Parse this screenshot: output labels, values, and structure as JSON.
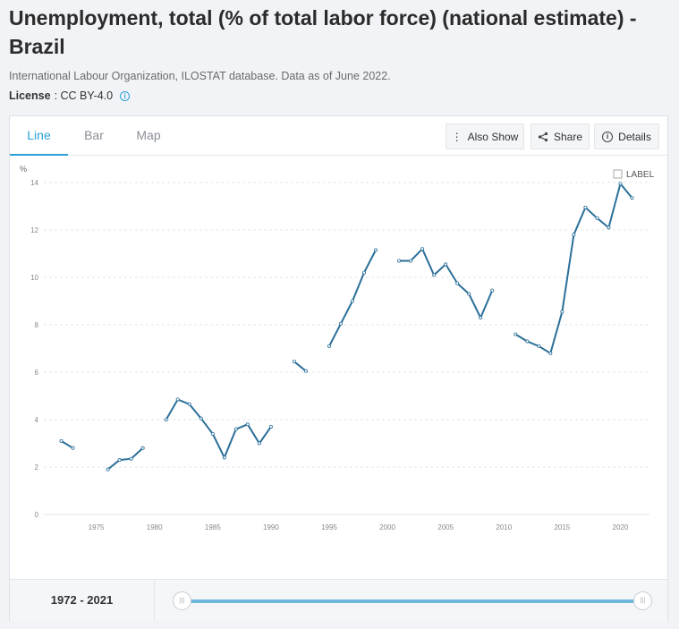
{
  "title": "Unemployment, total (% of total labor force) (national estimate) - Brazil",
  "source": "International Labour Organization, ILOSTAT database. Data as of June 2022.",
  "license": {
    "label": "License",
    "value": " : CC BY-4.0",
    "info_icon": "info-icon"
  },
  "tabs": [
    {
      "label": "Line"
    },
    {
      "label": "Bar"
    },
    {
      "label": "Map"
    }
  ],
  "buttons": {
    "also_show": {
      "label": "Also Show",
      "icon": "vertical-dots-icon"
    },
    "share": {
      "label": "Share",
      "icon": "share-icon"
    },
    "details": {
      "label": "Details",
      "icon": "info-icon"
    }
  },
  "label_toggle": "LABEL",
  "range_label": "1972 - 2021",
  "chart_data": {
    "type": "line",
    "ylabel": "%",
    "ylim": [
      0,
      14
    ],
    "y_ticks": [
      0,
      2,
      4,
      6,
      8,
      10,
      12,
      14
    ],
    "xlim": [
      1970.5,
      2022.5
    ],
    "x_ticks": [
      1975,
      1980,
      1985,
      1990,
      1995,
      2000,
      2005,
      2010,
      2015,
      2020
    ],
    "grid": "horizontal-dashed",
    "color": "#2b6f99",
    "series": [
      {
        "points": [
          [
            1972,
            3.1
          ],
          [
            1973,
            2.8
          ],
          [
            1974,
            null
          ],
          [
            1975,
            null
          ],
          [
            1976,
            1.9
          ],
          [
            1977,
            2.3
          ],
          [
            1978,
            2.35
          ],
          [
            1979,
            2.8
          ],
          [
            1980,
            null
          ],
          [
            1981,
            4.0
          ],
          [
            1982,
            4.85
          ],
          [
            1983,
            4.65
          ],
          [
            1984,
            4.05
          ],
          [
            1985,
            3.4
          ],
          [
            1986,
            2.4
          ],
          [
            1987,
            3.6
          ],
          [
            1988,
            3.8
          ],
          [
            1989,
            3.0
          ],
          [
            1990,
            3.7
          ],
          [
            1991,
            null
          ],
          [
            1992,
            6.45
          ],
          [
            1993,
            6.05
          ],
          [
            1994,
            null
          ],
          [
            1995,
            7.1
          ],
          [
            1996,
            8.05
          ],
          [
            1997,
            9.0
          ],
          [
            1998,
            10.2
          ],
          [
            1999,
            11.15
          ],
          [
            2000,
            null
          ],
          [
            2001,
            10.7
          ],
          [
            2002,
            10.7
          ],
          [
            2003,
            11.2
          ],
          [
            2004,
            10.1
          ],
          [
            2005,
            10.55
          ],
          [
            2006,
            9.75
          ],
          [
            2007,
            9.3
          ],
          [
            2008,
            8.3
          ],
          [
            2009,
            9.45
          ],
          [
            2010,
            null
          ],
          [
            2011,
            7.6
          ],
          [
            2012,
            7.3
          ],
          [
            2013,
            7.1
          ],
          [
            2014,
            6.8
          ],
          [
            2015,
            8.55
          ],
          [
            2016,
            11.8
          ],
          [
            2017,
            12.95
          ],
          [
            2018,
            12.5
          ],
          [
            2019,
            12.1
          ],
          [
            2020,
            13.95
          ],
          [
            2021,
            13.35
          ]
        ]
      }
    ]
  }
}
